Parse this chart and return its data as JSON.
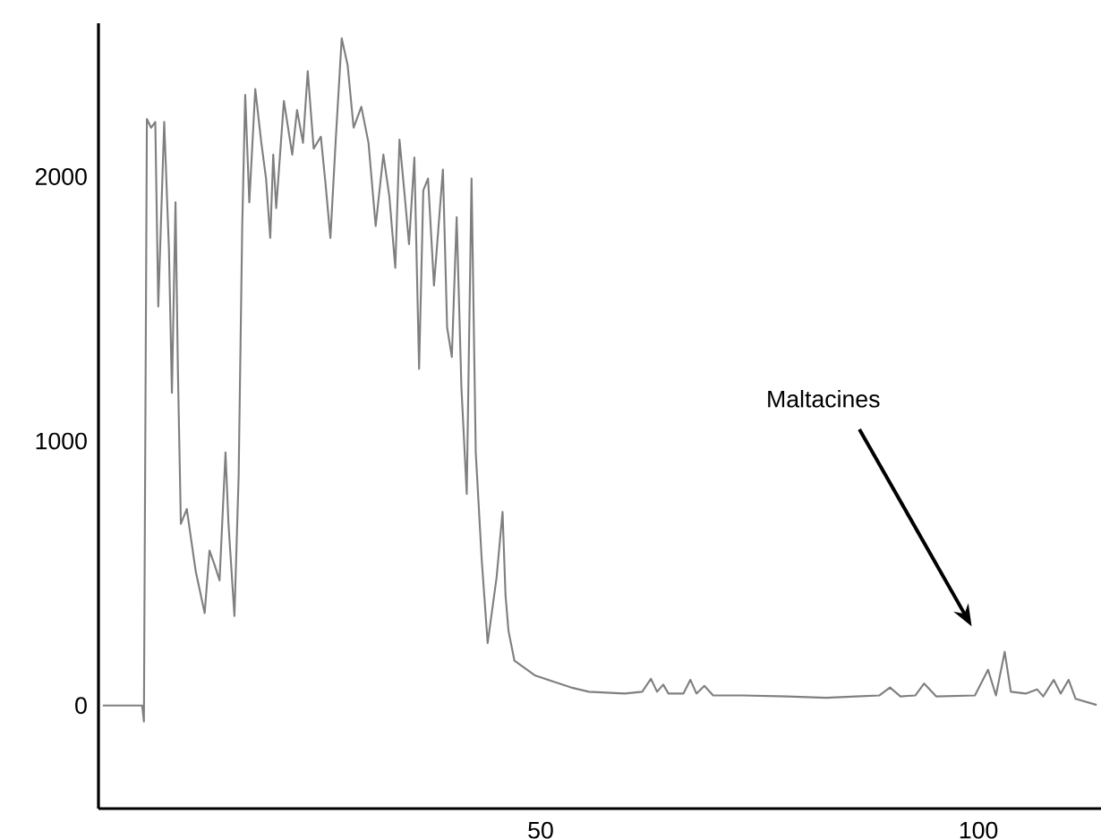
{
  "chart_data": {
    "type": "line",
    "xlim": [
      -0.5,
      114
    ],
    "ylim": [
      -390,
      2580
    ],
    "xticks": [
      50,
      100
    ],
    "yticks": [
      0,
      1000,
      2000
    ],
    "marker": "none",
    "line_style": "solid",
    "annotations": [
      "Maltacines"
    ],
    "series": [
      {
        "color": "#7f7f7f",
        "x": [
          0,
          4.49,
          4.69,
          5.03,
          5.51,
          5.99,
          6.33,
          7.01,
          7.55,
          7.89,
          8.3,
          8.57,
          8.91,
          9.59,
          10.07,
          10.61,
          11.63,
          12.18,
          12.79,
          13.33,
          14.01,
          14.35,
          15.03,
          15.51,
          15.92,
          16.26,
          16.73,
          17.41,
          18.1,
          18.64,
          19.12,
          19.46,
          19.8,
          20.68,
          21.63,
          22.18,
          22.86,
          23.4,
          24.08,
          24.9,
          25.44,
          25.99,
          26.6,
          27.28,
          27.96,
          28.64,
          29.52,
          30.34,
          31.16,
          32.04,
          32.72,
          33.4,
          33.88,
          34.42,
          34.97,
          35.58,
          36.12,
          36.6,
          37.14,
          37.82,
          38.84,
          39.32,
          39.86,
          40.41,
          40.95,
          41.56,
          42.11,
          42.59,
          43.27,
          43.95,
          44.97,
          45.65,
          45.99,
          46.33,
          47.01,
          49.39,
          53.47,
          55.5,
          59.6,
          61.6,
          62.6,
          63.3,
          64.0,
          64.6,
          66.3,
          67.1,
          67.8,
          68.7,
          69.7,
          73.1,
          78.2,
          82.6,
          86.0,
          88.7,
          89.9,
          91.1,
          92.8,
          93.8,
          95.2,
          99.6,
          101.1,
          102.0,
          103.0,
          103.7,
          105.4,
          106.7,
          107.4,
          108.6,
          109.4,
          110.3,
          111.1,
          113.5
        ],
        "values": [
          0,
          0,
          -61,
          2218,
          2185,
          2207,
          1509,
          2207,
          1723,
          1182,
          1903,
          1273,
          687,
          743,
          631,
          507,
          349,
          586,
          529,
          473,
          957,
          687,
          338,
          867,
          1813,
          2309,
          1903,
          2331,
          2128,
          1993,
          1768,
          2083,
          1881,
          2286,
          2083,
          2252,
          2128,
          2399,
          2106,
          2151,
          1971,
          1768,
          2140,
          2523,
          2421,
          2185,
          2264,
          2128,
          1813,
          2083,
          1926,
          1655,
          2140,
          1948,
          1745,
          2072,
          1273,
          1948,
          1993,
          1588,
          2027,
          1430,
          1318,
          1847,
          1205,
          800,
          1993,
          957,
          552,
          236,
          484,
          732,
          417,
          282,
          169,
          113,
          68,
          52,
          45,
          52,
          101,
          52,
          79,
          45,
          45,
          97,
          45,
          74,
          38,
          38,
          34,
          29,
          34,
          38,
          68,
          34,
          38,
          83,
          34,
          38,
          135,
          38,
          203,
          52,
          45,
          61,
          34,
          97,
          45,
          97,
          25,
          2
        ]
      }
    ]
  }
}
